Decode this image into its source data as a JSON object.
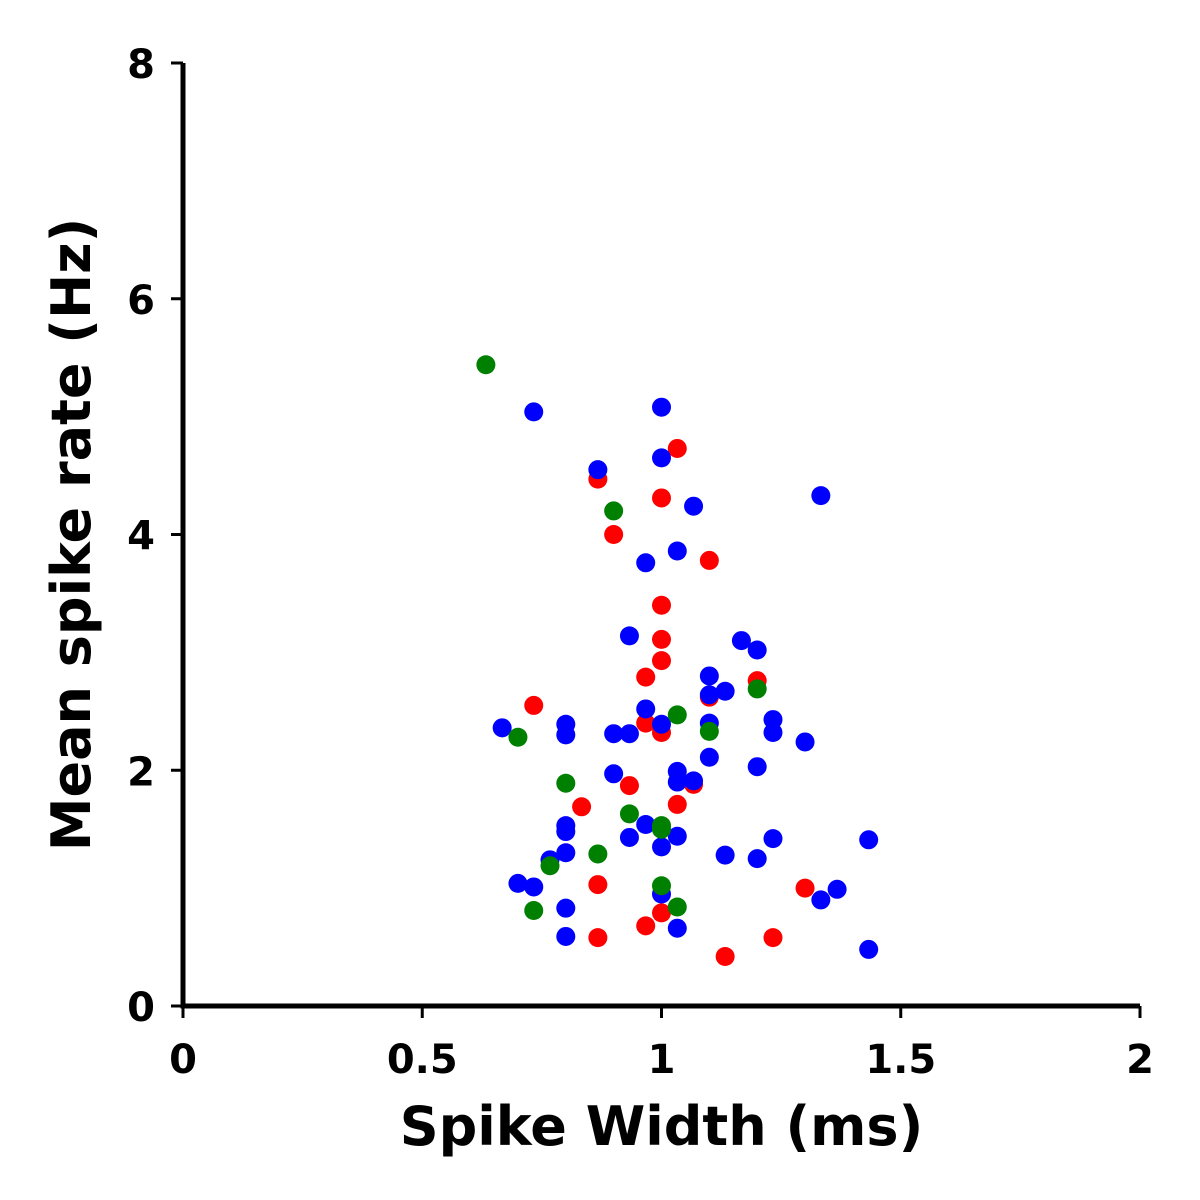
{
  "chart_data": {
    "type": "scatter",
    "xlabel": "Spike Width (ms)",
    "ylabel": "Mean spike rate (Hz)",
    "xlim": [
      0,
      2
    ],
    "ylim": [
      0,
      8
    ],
    "xticks": [
      0,
      0.5,
      1,
      1.5,
      2
    ],
    "xtick_labels": [
      "0",
      "0.5",
      "1",
      "1.5",
      "2"
    ],
    "yticks": [
      0,
      2,
      4,
      6,
      8
    ],
    "ytick_labels": [
      "0",
      "2",
      "4",
      "6",
      "8"
    ],
    "grid": false,
    "series": [
      {
        "color": "#ff0000",
        "points": [
          [
            1.033,
            4.73
          ],
          [
            0.867,
            4.47
          ],
          [
            1.0,
            4.31
          ],
          [
            0.9,
            4.0
          ],
          [
            1.1,
            3.78
          ],
          [
            1.0,
            3.4
          ],
          [
            1.0,
            3.11
          ],
          [
            1.0,
            2.93
          ],
          [
            0.967,
            2.79
          ],
          [
            1.2,
            2.76
          ],
          [
            1.1,
            2.62
          ],
          [
            0.733,
            2.55
          ],
          [
            0.967,
            2.4
          ],
          [
            1.0,
            2.32
          ],
          [
            1.067,
            1.88
          ],
          [
            0.933,
            1.87
          ],
          [
            0.833,
            1.69
          ],
          [
            1.033,
            1.71
          ],
          [
            0.867,
            1.03
          ],
          [
            1.3,
            1.0
          ],
          [
            1.0,
            0.79
          ],
          [
            0.967,
            0.68
          ],
          [
            0.867,
            0.58
          ],
          [
            1.233,
            0.58
          ],
          [
            1.133,
            0.42
          ]
        ]
      },
      {
        "color": "#0000ff",
        "points": [
          [
            0.733,
            5.04
          ],
          [
            1.0,
            5.08
          ],
          [
            1.0,
            4.65
          ],
          [
            0.867,
            4.55
          ],
          [
            1.067,
            4.24
          ],
          [
            1.333,
            4.33
          ],
          [
            1.033,
            3.86
          ],
          [
            0.967,
            3.76
          ],
          [
            0.933,
            3.14
          ],
          [
            1.167,
            3.1
          ],
          [
            1.2,
            3.02
          ],
          [
            1.1,
            2.8
          ],
          [
            1.133,
            2.67
          ],
          [
            1.1,
            2.64
          ],
          [
            0.967,
            2.52
          ],
          [
            0.8,
            2.39
          ],
          [
            1.0,
            2.39
          ],
          [
            1.1,
            2.4
          ],
          [
            1.233,
            2.43
          ],
          [
            0.667,
            2.36
          ],
          [
            0.8,
            2.3
          ],
          [
            0.9,
            2.31
          ],
          [
            0.933,
            2.31
          ],
          [
            1.233,
            2.32
          ],
          [
            1.3,
            2.24
          ],
          [
            1.1,
            2.11
          ],
          [
            1.2,
            2.03
          ],
          [
            1.033,
            1.99
          ],
          [
            0.9,
            1.97
          ],
          [
            1.033,
            1.9
          ],
          [
            1.067,
            1.91
          ],
          [
            0.8,
            1.53
          ],
          [
            0.8,
            1.48
          ],
          [
            0.967,
            1.54
          ],
          [
            0.933,
            1.43
          ],
          [
            1.033,
            1.44
          ],
          [
            1.233,
            1.42
          ],
          [
            1.433,
            1.41
          ],
          [
            1.0,
            1.35
          ],
          [
            0.8,
            1.3
          ],
          [
            0.767,
            1.24
          ],
          [
            1.133,
            1.28
          ],
          [
            1.2,
            1.25
          ],
          [
            0.7,
            1.04
          ],
          [
            0.733,
            1.01
          ],
          [
            1.367,
            0.99
          ],
          [
            1.0,
            0.95
          ],
          [
            1.333,
            0.9
          ],
          [
            0.8,
            0.83
          ],
          [
            1.033,
            0.66
          ],
          [
            0.8,
            0.59
          ],
          [
            1.433,
            0.48
          ]
        ]
      },
      {
        "color": "#008000",
        "points": [
          [
            0.633,
            5.44
          ],
          [
            0.9,
            4.2
          ],
          [
            1.2,
            2.69
          ],
          [
            1.033,
            2.47
          ],
          [
            1.1,
            2.33
          ],
          [
            0.7,
            2.28
          ],
          [
            0.8,
            1.89
          ],
          [
            0.933,
            1.63
          ],
          [
            1.0,
            1.53
          ],
          [
            1.0,
            1.5
          ],
          [
            0.867,
            1.29
          ],
          [
            0.767,
            1.19
          ],
          [
            1.0,
            1.02
          ],
          [
            1.033,
            0.84
          ],
          [
            0.733,
            0.81
          ]
        ]
      }
    ]
  }
}
